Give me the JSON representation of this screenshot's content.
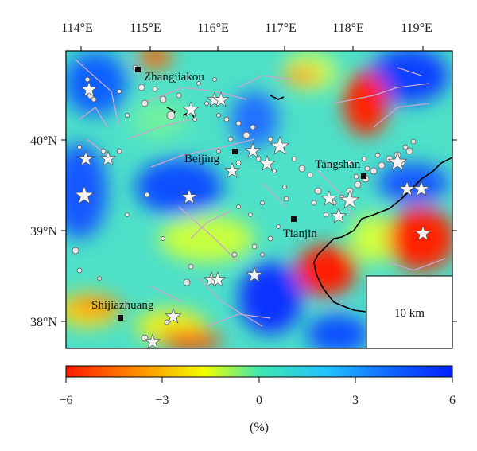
{
  "map": {
    "lon_ticks": [
      "114°E",
      "115°E",
      "116°E",
      "117°E",
      "118°E",
      "119°E"
    ],
    "lat_ticks": [
      "40°N",
      "39°N",
      "38°N"
    ],
    "cities": [
      {
        "name": "Zhangjiakou",
        "lon": 114.9,
        "lat": 40.78
      },
      {
        "name": "Beijing",
        "lon": 116.4,
        "lat": 39.9
      },
      {
        "name": "Tangshan",
        "lon": 118.18,
        "lat": 39.63
      },
      {
        "name": "Tianjin",
        "lon": 117.2,
        "lat": 39.13
      },
      {
        "name": "Shijiazhuang",
        "lon": 114.48,
        "lat": 38.03
      }
    ],
    "scale_label": "10 km",
    "colors": {
      "neg": "#ff1a00",
      "mid": "#40e0c0",
      "pos": "#0020ff",
      "star": "#ffffff",
      "circle": "#e8e8e8",
      "fault": "#c8a8c8",
      "coast": "#000000"
    }
  },
  "colorbar": {
    "ticks": [
      "−6",
      "−3",
      "0",
      "3",
      "6"
    ],
    "unit_label": "(%)"
  }
}
